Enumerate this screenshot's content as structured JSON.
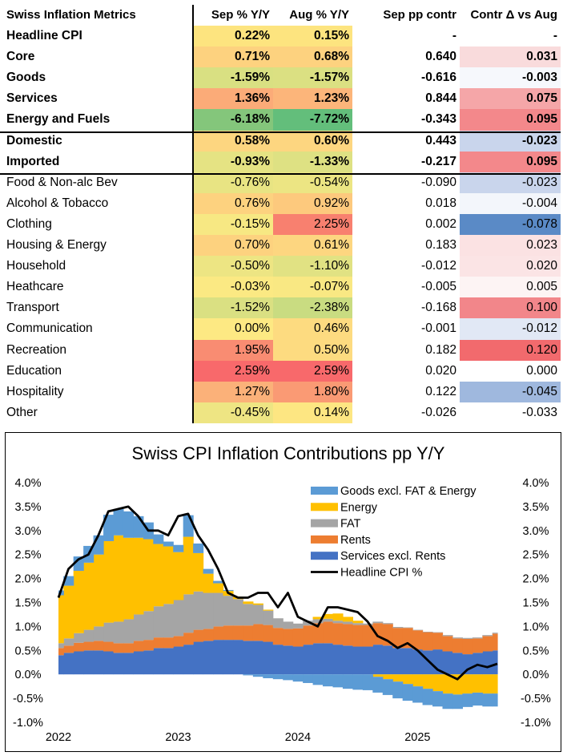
{
  "table": {
    "headers": [
      "Swiss Inflation Metrics",
      "Sep % Y/Y",
      "Aug % Y/Y",
      "Sep pp contr",
      "Contr Δ vs Aug"
    ],
    "rows": [
      {
        "label": "Headline CPI",
        "bold": true,
        "sep": "0.22%",
        "aug": "0.15%",
        "pp": "-",
        "delta": "-",
        "sep_bg": "#fde47f",
        "aug_bg": "#fde47f",
        "delta_bg": "#ffffff"
      },
      {
        "label": "Core",
        "bold": true,
        "sep": "0.71%",
        "aug": "0.68%",
        "pp": "0.640",
        "delta": "0.031",
        "sep_bg": "#fdd27f",
        "aug_bg": "#fdd27f",
        "delta_bg": "#f9dbdc"
      },
      {
        "label": "Goods",
        "bold": true,
        "sep": "-1.59%",
        "aug": "-1.57%",
        "pp": "-0.616",
        "delta": "-0.003",
        "sep_bg": "#d9e082",
        "aug_bg": "#dbe082",
        "delta_bg": "#f6f8fc"
      },
      {
        "label": "Services",
        "bold": true,
        "sep": "1.36%",
        "aug": "1.23%",
        "pp": "0.844",
        "delta": "0.075",
        "sep_bg": "#fbab78",
        "aug_bg": "#fcb57a",
        "delta_bg": "#f5a6a8"
      },
      {
        "label": "Energy and Fuels",
        "bold": true,
        "sep": "-6.18%",
        "aug": "-7.72%",
        "pp": "-0.343",
        "delta": "0.095",
        "sep_bg": "#84c67b",
        "aug_bg": "#63be7b",
        "delta_bg": "#f3888b"
      },
      {
        "label": "Domestic",
        "bold": true,
        "sep": "0.58%",
        "aug": "0.60%",
        "pp": "0.443",
        "delta": "-0.023",
        "sep_bg": "#fdd680",
        "aug_bg": "#fdd680",
        "delta_bg": "#c9d5ec"
      },
      {
        "label": "Imported",
        "bold": true,
        "sep": "-0.93%",
        "aug": "-1.33%",
        "pp": "-0.217",
        "delta": "0.095",
        "sep_bg": "#e5e383",
        "aug_bg": "#dee183",
        "delta_bg": "#f3888b"
      },
      {
        "label": "Food & Non-alc Bev",
        "bold": false,
        "sep": "-0.76%",
        "aug": "-0.54%",
        "pp": "-0.090",
        "delta": "-0.023",
        "sep_bg": "#e8e483",
        "aug_bg": "#ece583",
        "delta_bg": "#c9d5ec"
      },
      {
        "label": "Alcohol & Tobacco",
        "bold": false,
        "sep": "0.76%",
        "aug": "0.92%",
        "pp": "0.018",
        "delta": "-0.004",
        "sep_bg": "#fdd27f",
        "aug_bg": "#fdc97d",
        "delta_bg": "#f3f6fb"
      },
      {
        "label": "Clothing",
        "bold": false,
        "sep": "-0.15%",
        "aug": "2.25%",
        "pp": "0.002",
        "delta": "-0.078",
        "sep_bg": "#f7e883",
        "aug_bg": "#f8806f",
        "delta_bg": "#5a8ac6"
      },
      {
        "label": "Housing & Energy",
        "bold": false,
        "sep": "0.70%",
        "aug": "0.61%",
        "pp": "0.183",
        "delta": "0.023",
        "sep_bg": "#fdd27f",
        "aug_bg": "#fdd680",
        "delta_bg": "#fbe2e3"
      },
      {
        "label": "Household",
        "bold": false,
        "sep": "-0.50%",
        "aug": "-1.10%",
        "pp": "-0.012",
        "delta": "0.020",
        "sep_bg": "#ede583",
        "aug_bg": "#e1e283",
        "delta_bg": "#fbe4e5"
      },
      {
        "label": "Heathcare",
        "bold": false,
        "sep": "-0.03%",
        "aug": "-0.07%",
        "pp": "-0.005",
        "delta": "0.005",
        "sep_bg": "#fbe983",
        "aug_bg": "#f9e883",
        "delta_bg": "#fdf4f4"
      },
      {
        "label": "Transport",
        "bold": false,
        "sep": "-1.52%",
        "aug": "-2.38%",
        "pp": "-0.168",
        "delta": "0.100",
        "sep_bg": "#dae082",
        "aug_bg": "#c9dc81",
        "delta_bg": "#f2868a"
      },
      {
        "label": "Communication",
        "bold": false,
        "sep": "0.00%",
        "aug": "0.46%",
        "pp": "-0.001",
        "delta": "-0.012",
        "sep_bg": "#fde983",
        "aug_bg": "#fddb80",
        "delta_bg": "#e1e8f5"
      },
      {
        "label": "Recreation",
        "bold": false,
        "sep": "1.95%",
        "aug": "0.50%",
        "pp": "0.182",
        "delta": "0.120",
        "sep_bg": "#f98c72",
        "aug_bg": "#fddb80",
        "delta_bg": "#f26a6d"
      },
      {
        "label": "Education",
        "bold": false,
        "sep": "2.59%",
        "aug": "2.59%",
        "pp": "0.020",
        "delta": "0.000",
        "sep_bg": "#f8696b",
        "aug_bg": "#f8696b",
        "delta_bg": "#ffffff"
      },
      {
        "label": "Hospitality",
        "bold": false,
        "sep": "1.27%",
        "aug": "1.80%",
        "pp": "0.122",
        "delta": "-0.045",
        "sep_bg": "#fbb179",
        "aug_bg": "#fa9a74",
        "delta_bg": "#9fb8de"
      },
      {
        "label": "Other",
        "bold": false,
        "sep": "-0.45%",
        "aug": "0.14%",
        "pp": "-0.026",
        "delta": "-0.033",
        "sep_bg": "#eee583",
        "aug_bg": "#fde682",
        "delta_bg": "#ffffff"
      }
    ]
  },
  "chart_data": {
    "type": "area",
    "title": "Swiss CPI Inflation Contributions pp Y/Y",
    "xlabel": "",
    "ylabel": "",
    "ylim": [
      -1.0,
      4.0
    ],
    "y_ticks": [
      "4.0%",
      "3.5%",
      "3.0%",
      "2.5%",
      "2.0%",
      "1.5%",
      "1.0%",
      "0.5%",
      "0.0%",
      "-0.5%",
      "-1.0%"
    ],
    "x_ticks": [
      "2022",
      "2023",
      "2024",
      "2025"
    ],
    "x_tick_index": [
      0,
      12,
      24,
      36
    ],
    "n_months": 45,
    "legend_position": "top-right",
    "colors": {
      "goods": "#5b9bd5",
      "energy": "#ffc000",
      "fat": "#a5a5a5",
      "rents": "#ed7d31",
      "services": "#4472c4",
      "headline": "#000000"
    },
    "series": [
      {
        "key": "services",
        "name": "Services excl. Rents",
        "values": [
          0.4,
          0.45,
          0.48,
          0.5,
          0.5,
          0.48,
          0.45,
          0.45,
          0.48,
          0.5,
          0.55,
          0.55,
          0.58,
          0.62,
          0.68,
          0.7,
          0.72,
          0.72,
          0.72,
          0.7,
          0.7,
          0.68,
          0.62,
          0.6,
          0.58,
          0.62,
          0.65,
          0.65,
          0.62,
          0.6,
          0.58,
          0.58,
          0.62,
          0.6,
          0.55,
          0.55,
          0.52,
          0.5,
          0.52,
          0.48,
          0.45,
          0.42,
          0.45,
          0.48,
          0.5
        ]
      },
      {
        "key": "rents",
        "name": "Rents",
        "values": [
          0.15,
          0.15,
          0.18,
          0.18,
          0.2,
          0.2,
          0.2,
          0.2,
          0.22,
          0.22,
          0.22,
          0.22,
          0.22,
          0.25,
          0.25,
          0.25,
          0.28,
          0.3,
          0.3,
          0.32,
          0.35,
          0.35,
          0.35,
          0.35,
          0.38,
          0.4,
          0.42,
          0.45,
          0.45,
          0.45,
          0.45,
          0.45,
          0.45,
          0.45,
          0.42,
          0.42,
          0.4,
          0.38,
          0.35,
          0.32,
          0.3,
          0.32,
          0.3,
          0.32,
          0.35
        ]
      },
      {
        "key": "fat",
        "name": "FAT",
        "values": [
          0.1,
          0.15,
          0.2,
          0.25,
          0.3,
          0.4,
          0.45,
          0.5,
          0.55,
          0.6,
          0.65,
          0.7,
          0.75,
          0.8,
          0.8,
          0.75,
          0.7,
          0.62,
          0.55,
          0.45,
          0.4,
          0.3,
          0.2,
          0.15,
          0.1,
          0.1,
          0.08,
          0.06,
          0.05,
          0.05,
          0.04,
          0.03,
          0.03,
          0.02,
          0.02,
          0.01,
          0.01,
          0.01,
          0.01,
          0.02,
          0.02,
          0.02,
          0.02,
          0.02,
          0.02
        ]
      },
      {
        "key": "energy",
        "name": "Energy",
        "values": [
          1.0,
          1.1,
          1.3,
          1.4,
          1.5,
          1.7,
          1.8,
          1.7,
          1.6,
          1.5,
          1.3,
          1.2,
          1.0,
          1.2,
          0.8,
          0.4,
          0.2,
          0.1,
          0.05,
          0.05,
          0.03,
          0.02,
          0.0,
          0.0,
          0.0,
          0.0,
          0.05,
          0.1,
          0.15,
          0.1,
          0.05,
          0.0,
          -0.05,
          -0.1,
          -0.15,
          -0.2,
          -0.25,
          -0.3,
          -0.35,
          -0.4,
          -0.42,
          -0.4,
          -0.38,
          -0.4,
          -0.4
        ]
      },
      {
        "key": "goods",
        "name": "Goods excl. FAT & Energy",
        "values": [
          0.1,
          0.2,
          0.3,
          0.35,
          0.4,
          0.55,
          0.55,
          0.55,
          0.45,
          0.35,
          0.2,
          0.1,
          0.15,
          0.45,
          0.2,
          0.1,
          0.05,
          0.02,
          0.0,
          -0.02,
          -0.05,
          -0.08,
          -0.1,
          -0.12,
          -0.15,
          -0.18,
          -0.22,
          -0.25,
          -0.27,
          -0.3,
          -0.32,
          -0.33,
          -0.33,
          -0.33,
          -0.35,
          -0.35,
          -0.34,
          -0.34,
          -0.32,
          -0.32,
          -0.3,
          -0.28,
          -0.27,
          -0.27,
          -0.27
        ]
      },
      {
        "key": "headline",
        "name": "Headline CPI %",
        "type": "line",
        "values": [
          1.6,
          2.2,
          2.4,
          2.5,
          2.9,
          3.4,
          3.45,
          3.5,
          3.3,
          3.0,
          3.0,
          2.9,
          3.3,
          3.35,
          2.9,
          2.6,
          2.2,
          1.7,
          1.6,
          1.6,
          1.7,
          1.7,
          1.4,
          1.7,
          1.2,
          1.1,
          1.0,
          1.4,
          1.4,
          1.35,
          1.3,
          1.1,
          0.8,
          0.7,
          0.55,
          0.65,
          0.5,
          0.3,
          0.1,
          0.0,
          -0.1,
          0.1,
          0.2,
          0.15,
          0.22
        ]
      }
    ]
  }
}
